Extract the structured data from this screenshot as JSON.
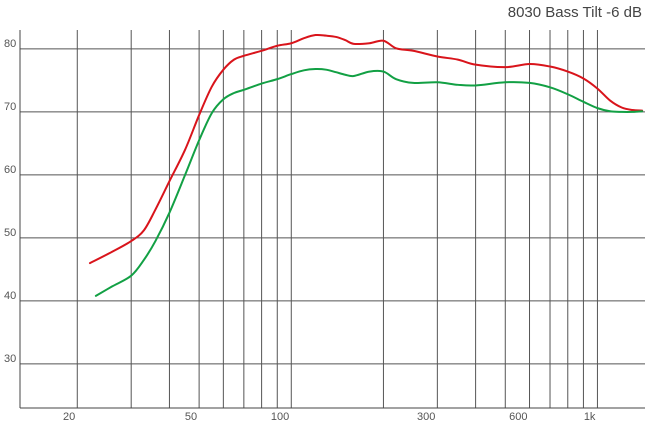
{
  "chart_data": {
    "type": "line",
    "title": "8030 Bass Tilt -6 dB",
    "xlabel": "",
    "ylabel": "",
    "x_scale": "log",
    "xlim": [
      13,
      1430
    ],
    "ylim": [
      23,
      83
    ],
    "grid": true,
    "x_gridlines": [
      20,
      30,
      40,
      50,
      60,
      70,
      80,
      90,
      100,
      200,
      300,
      400,
      500,
      600,
      700,
      800,
      900,
      1000
    ],
    "y_gridlines": [
      30,
      40,
      50,
      60,
      70,
      80
    ],
    "x_ticks": [
      {
        "value": 20,
        "label": "20"
      },
      {
        "value": 50,
        "label": "50"
      },
      {
        "value": 100,
        "label": "100"
      },
      {
        "value": 300,
        "label": "300"
      },
      {
        "value": 600,
        "label": "600"
      },
      {
        "value": 1000,
        "label": "1k"
      }
    ],
    "y_ticks": [
      {
        "value": 30,
        "label": "30"
      },
      {
        "value": 40,
        "label": "40"
      },
      {
        "value": 50,
        "label": "50"
      },
      {
        "value": 60,
        "label": "60"
      },
      {
        "value": 70,
        "label": "70"
      },
      {
        "value": 80,
        "label": "80"
      }
    ],
    "series": [
      {
        "color": "#d9141b",
        "x": [
          22,
          26,
          30,
          33,
          36,
          40,
          45,
          50,
          55,
          60,
          65,
          70,
          80,
          90,
          100,
          110,
          120,
          130,
          140,
          150,
          160,
          180,
          200,
          220,
          250,
          300,
          350,
          400,
          500,
          600,
          700,
          800,
          900,
          1000,
          1100,
          1200,
          1300,
          1400
        ],
        "y": [
          46,
          47.8,
          49.5,
          51.2,
          54.5,
          59,
          64,
          69.5,
          74,
          76.7,
          78.3,
          78.9,
          79.7,
          80.5,
          80.9,
          81.7,
          82.2,
          82.1,
          81.9,
          81.4,
          80.8,
          80.9,
          81.3,
          80.1,
          79.7,
          78.8,
          78.3,
          77.5,
          77.1,
          77.6,
          77.2,
          76.4,
          75.3,
          73.7,
          71.8,
          70.7,
          70.3,
          70.2
        ]
      },
      {
        "color": "#12a044",
        "x": [
          23,
          26,
          30,
          33,
          36,
          40,
          45,
          50,
          55,
          60,
          65,
          70,
          80,
          90,
          100,
          110,
          120,
          130,
          140,
          150,
          160,
          180,
          200,
          220,
          250,
          300,
          350,
          400,
          500,
          600,
          700,
          800,
          900,
          1000,
          1100,
          1200,
          1300,
          1400
        ],
        "y": [
          40.8,
          42.3,
          44,
          46.5,
          49.5,
          54,
          60,
          65.5,
          69.8,
          72,
          73,
          73.5,
          74.5,
          75.2,
          76,
          76.6,
          76.8,
          76.7,
          76.3,
          75.9,
          75.7,
          76.4,
          76.4,
          75.2,
          74.6,
          74.7,
          74.3,
          74.2,
          74.7,
          74.6,
          73.9,
          72.8,
          71.6,
          70.6,
          70.1,
          70,
          70,
          70.1
        ]
      }
    ]
  }
}
